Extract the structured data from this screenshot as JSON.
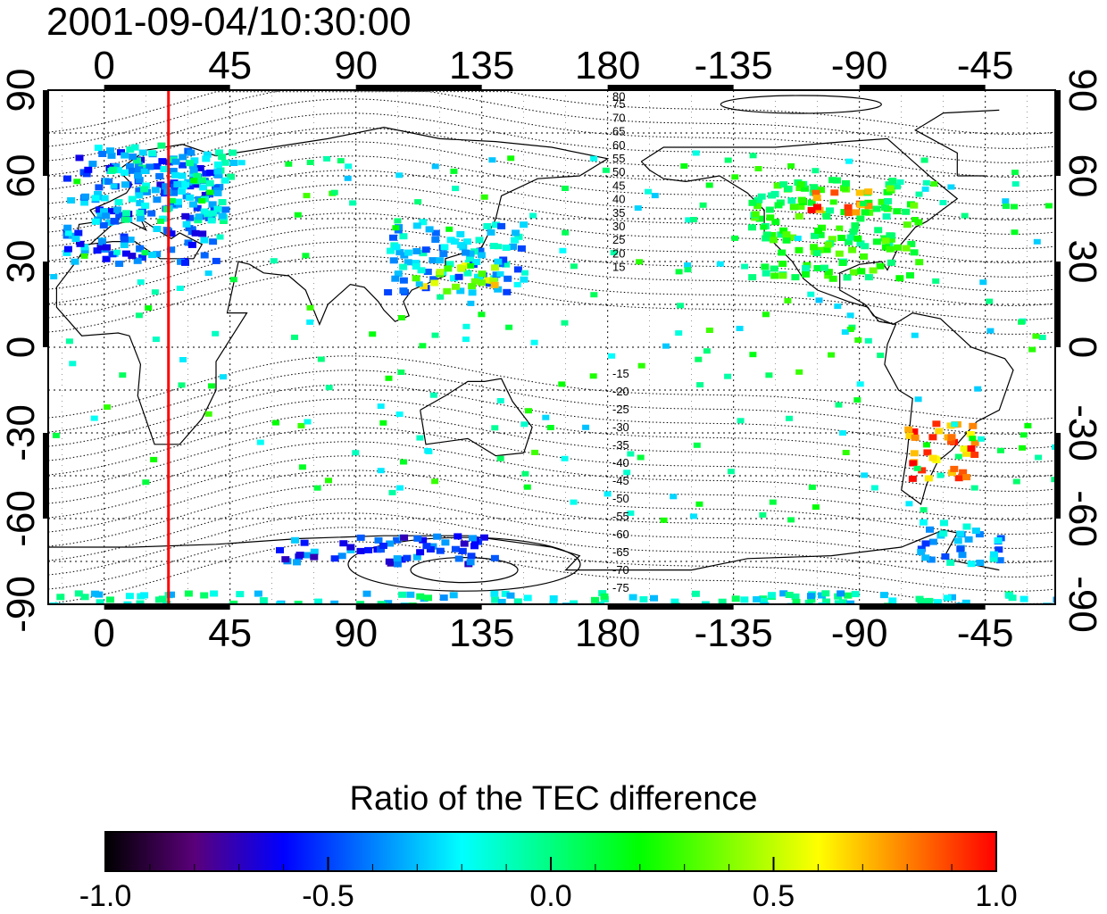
{
  "header": {
    "title": "2001-09-04/10:30:00"
  },
  "map": {
    "lon_ticks": [
      0,
      45,
      90,
      135,
      180,
      -135,
      -90,
      -45
    ],
    "lon_tick_labels": [
      "0",
      "45",
      "90",
      "135",
      "180",
      "-135",
      "-90",
      "-45"
    ],
    "lat_ticks": [
      90,
      60,
      30,
      0,
      -30,
      -60,
      -90
    ],
    "lat_tick_labels": [
      "90",
      "60",
      "30",
      "0",
      "-30",
      "-60",
      "-90"
    ],
    "lon_range": [
      -20,
      340
    ],
    "lat_range": [
      -90,
      90
    ],
    "grid": "dotted",
    "marker_line": {
      "lon": 23,
      "color": "#ff0000"
    },
    "dip_contour_labels": [
      "80",
      "75",
      "70",
      "65",
      "60",
      "55",
      "50",
      "45",
      "40",
      "35",
      "30",
      "25",
      "20",
      "15",
      "-15",
      "-20",
      "-25",
      "-30",
      "-35",
      "-40",
      "-45",
      "-50",
      "-55",
      "-60",
      "-65",
      "-70",
      "-75"
    ]
  },
  "colorbar": {
    "title": "Ratio of the TEC difference",
    "range": [
      -1.0,
      1.0
    ],
    "tick_labels": [
      "-1.0",
      "-0.5",
      "0.0",
      "0.5",
      "1.0"
    ],
    "tick_values": [
      -1.0,
      -0.5,
      0.0,
      0.5,
      1.0
    ],
    "colors": [
      "#000000",
      "#5a007a",
      "#0000ff",
      "#0080ff",
      "#00ffff",
      "#00ff80",
      "#00ff00",
      "#80ff00",
      "#ffff00",
      "#ff8000",
      "#ff0000"
    ]
  },
  "chart_data": {
    "type": "heatmap",
    "title": "2001-09-04/10:30:00",
    "colorbar_label": "Ratio of the TEC difference",
    "clim": [
      -1.0,
      1.0
    ],
    "xlim": [
      -20,
      340
    ],
    "ylim": [
      -90,
      90
    ],
    "regions": [
      {
        "lon": [
          -15,
          40
        ],
        "lat": [
          30,
          70
        ],
        "value": -0.45
      },
      {
        "lon": [
          -5,
          45
        ],
        "lat": [
          45,
          72
        ],
        "value": -0.2
      },
      {
        "lon": [
          100,
          150
        ],
        "lat": [
          20,
          45
        ],
        "value": -0.3
      },
      {
        "lon": [
          110,
          140
        ],
        "lat": [
          20,
          30
        ],
        "value": 0.5
      },
      {
        "lon": [
          230,
          290
        ],
        "lat": [
          25,
          60
        ],
        "value": 0.15
      },
      {
        "lon": [
          250,
          275
        ],
        "lat": [
          48,
          56
        ],
        "value": 0.9
      },
      {
        "lon": [
          285,
          310
        ],
        "lat": [
          -45,
          -25
        ],
        "value": 0.8
      },
      {
        "lon": [
          290,
          320
        ],
        "lat": [
          -75,
          -60
        ],
        "value": -0.3
      },
      {
        "lon": [
          60,
          140
        ],
        "lat": [
          -75,
          -65
        ],
        "value": -0.5
      },
      {
        "lon": [
          -20,
          340
        ],
        "lat": [
          -90,
          -85
        ],
        "value": -0.15
      }
    ]
  }
}
